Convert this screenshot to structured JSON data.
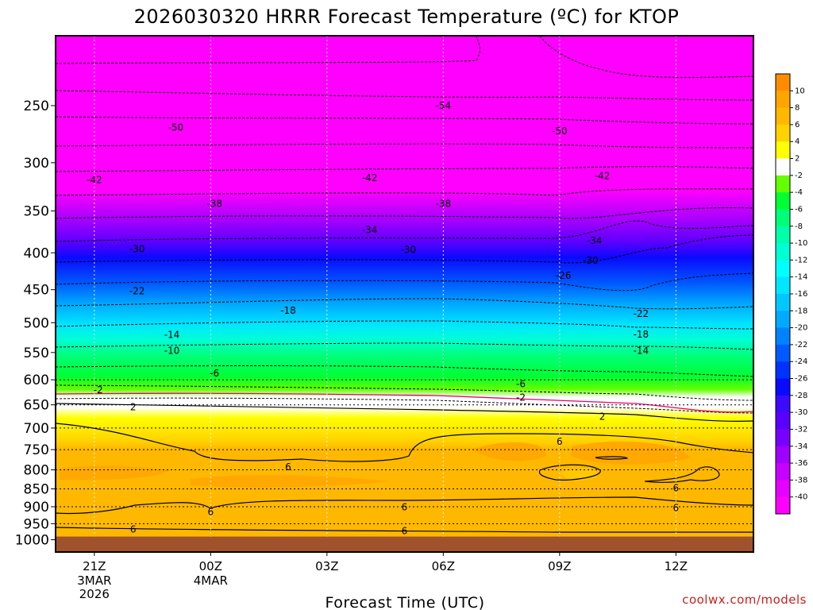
{
  "chart_data": {
    "type": "contour",
    "title": "2026030320 HRRR Forecast Temperature (ºC) for KTOP",
    "xlabel": "Forecast Time (UTC)",
    "ylabel": "",
    "x_ticks": [
      "21Z",
      "00Z",
      "03Z",
      "06Z",
      "09Z",
      "12Z"
    ],
    "x_tick_hours": [
      1,
      4,
      7,
      10,
      13,
      16
    ],
    "x_range_hours": [
      0,
      18
    ],
    "x_date_labels": [
      {
        "hour": 1,
        "lines": [
          "3MAR",
          "2026"
        ]
      },
      {
        "hour": 4,
        "lines": [
          "4MAR"
        ]
      }
    ],
    "y_ticks": [
      250,
      300,
      350,
      400,
      450,
      500,
      550,
      600,
      650,
      700,
      750,
      800,
      850,
      900,
      950,
      1000
    ],
    "y_range_hpa": [
      200,
      1040
    ],
    "ground_level_hpa": 1000,
    "colorbar_levels": [
      10,
      8,
      6,
      4,
      2,
      -2,
      -4,
      -6,
      -8,
      -10,
      -12,
      -14,
      -16,
      -18,
      -20,
      -22,
      -24,
      -26,
      -28,
      -30,
      -32,
      -34,
      -36,
      -38,
      -40
    ],
    "colorbar_colors": [
      "#ff8c00",
      "#ffa500",
      "#ffb800",
      "#ffd200",
      "#ffff00",
      "#ffffff",
      "#64ff00",
      "#00ff32",
      "#00ff78",
      "#00ffaa",
      "#00ffd2",
      "#00ffff",
      "#00e6ff",
      "#00c8ff",
      "#00aaff",
      "#0082ff",
      "#005aff",
      "#0032ff",
      "#0a0aff",
      "#3c0aff",
      "#5a00ff",
      "#7800ff",
      "#a000ff",
      "#c800ff",
      "#e600ff",
      "#ff00ff"
    ],
    "temperature_profile": {
      "pressure_hpa": [
        250,
        300,
        350,
        400,
        450,
        500,
        550,
        600,
        650,
        700,
        750,
        800,
        850,
        900,
        950,
        1000
      ],
      "temperature_c": [
        -54,
        -46,
        -38,
        -30,
        -22,
        -15,
        -10,
        -5,
        1,
        5,
        6,
        7,
        7,
        6,
        5,
        6
      ]
    },
    "contour_labels": [
      {
        "text": "-54",
        "hour": 10.0,
        "hpa": 250
      },
      {
        "text": "-50",
        "hour": 3.1,
        "hpa": 268
      },
      {
        "text": "-50",
        "hour": 13.0,
        "hpa": 271
      },
      {
        "text": "-42",
        "hour": 1.0,
        "hpa": 317
      },
      {
        "text": "-42",
        "hour": 8.1,
        "hpa": 315
      },
      {
        "text": "-42",
        "hour": 14.1,
        "hpa": 313
      },
      {
        "text": "-38",
        "hour": 4.1,
        "hpa": 342
      },
      {
        "text": "-38",
        "hour": 10.0,
        "hpa": 342
      },
      {
        "text": "-34",
        "hour": 8.1,
        "hpa": 372
      },
      {
        "text": "-34",
        "hour": 13.9,
        "hpa": 385
      },
      {
        "text": "-30",
        "hour": 2.1,
        "hpa": 395
      },
      {
        "text": "-30",
        "hour": 9.1,
        "hpa": 396
      },
      {
        "text": "-30",
        "hour": 13.8,
        "hpa": 410
      },
      {
        "text": "-26",
        "hour": 13.1,
        "hpa": 430
      },
      {
        "text": "-22",
        "hour": 2.1,
        "hpa": 452
      },
      {
        "text": "-22",
        "hour": 15.1,
        "hpa": 486
      },
      {
        "text": "-18",
        "hour": 6.0,
        "hpa": 481
      },
      {
        "text": "-18",
        "hour": 15.1,
        "hpa": 519
      },
      {
        "text": "-14",
        "hour": 3.0,
        "hpa": 520
      },
      {
        "text": "-14",
        "hour": 15.1,
        "hpa": 547
      },
      {
        "text": "-10",
        "hour": 3.0,
        "hpa": 547
      },
      {
        "text": "-6",
        "hour": 4.1,
        "hpa": 588
      },
      {
        "text": "-6",
        "hour": 12.0,
        "hpa": 608
      },
      {
        "text": "-2",
        "hour": 1.1,
        "hpa": 620
      },
      {
        "text": "-2",
        "hour": 12.0,
        "hpa": 635
      },
      {
        "text": "2",
        "hour": 2.0,
        "hpa": 655
      },
      {
        "text": "2",
        "hour": 14.1,
        "hpa": 675
      },
      {
        "text": "6",
        "hour": 13.0,
        "hpa": 731
      },
      {
        "text": "6",
        "hour": 6.0,
        "hpa": 793
      },
      {
        "text": "6",
        "hour": 16.0,
        "hpa": 848
      },
      {
        "text": "6",
        "hour": 9.0,
        "hpa": 901
      },
      {
        "text": "6",
        "hour": 16.0,
        "hpa": 903
      },
      {
        "text": "6",
        "hour": 4.0,
        "hpa": 915
      },
      {
        "text": "6",
        "hour": 2.0,
        "hpa": 967
      },
      {
        "text": "6",
        "hour": 9.0,
        "hpa": 973
      }
    ]
  },
  "credit": "coolwx.com/models"
}
